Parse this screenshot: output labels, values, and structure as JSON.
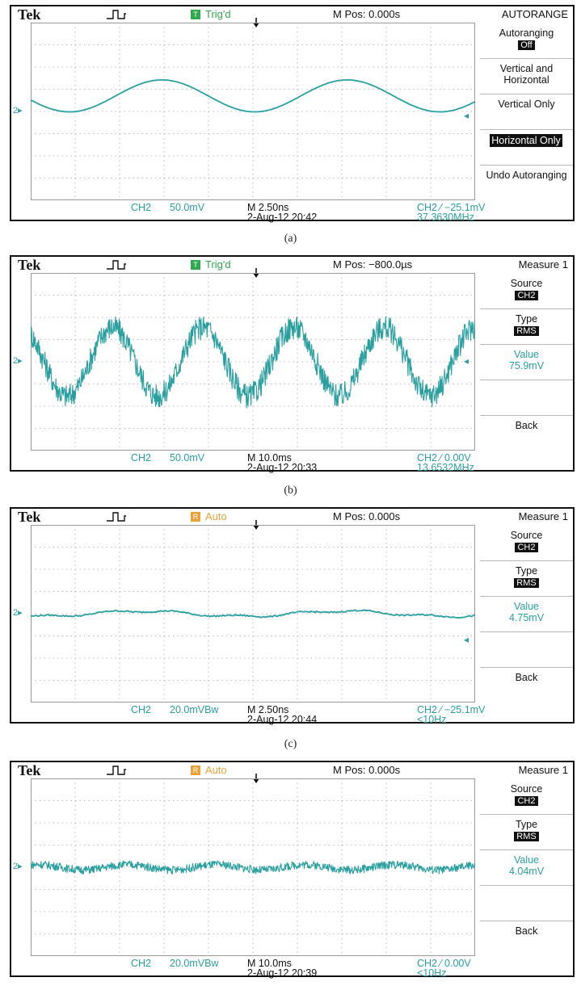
{
  "screens": [
    {
      "caption": "(a)",
      "brand": "Tek",
      "trigger_badge": "T",
      "trigger_status": "Trig'd",
      "trigger_color": "#2fa84f",
      "mpos": "M Pos: 0.000s",
      "menu_title": "AUTORANGE",
      "ch_label": "CH2",
      "vscale": "50.0mV",
      "timebase": "M 2.50ns",
      "datetime": "2-Aug-12 20:42",
      "trig_info": "CH2 ⁄ −25.1mV",
      "freq": "37.3630MHz",
      "menu": [
        {
          "label": "Autoranging",
          "chip": "Off"
        },
        {
          "label": "Vertical and Horizontal"
        },
        {
          "label": "Vertical Only"
        },
        {
          "label": "Horizontal Only",
          "highlight": true
        },
        {
          "label": "Undo Autoranging"
        }
      ],
      "waveform": {
        "type": "sine",
        "cycles": 2.4,
        "amplitude_div": 0.72,
        "offset_div": 0.7,
        "noise_div": 0,
        "phase": 3.4
      },
      "level_marker_div": -0.2
    },
    {
      "caption": "(b)",
      "brand": "Tek",
      "trigger_badge": "T",
      "trigger_status": "Trig'd",
      "trigger_color": "#2fa84f",
      "mpos": "M Pos: −800.0µs",
      "menu_title": "Measure 1",
      "ch_label": "CH2",
      "vscale": "50.0mV",
      "timebase": "M 10.0ms",
      "datetime": "2-Aug-12 20:33",
      "trig_info": "CH2 ⁄ 0.00V",
      "freq": "13.6532MHz",
      "menu": [
        {
          "label": "Source",
          "chip": "CH2"
        },
        {
          "label": "Type",
          "chip": "RMS"
        },
        {
          "label": "Value",
          "value": "75.9mV"
        },
        {
          "label": ""
        },
        {
          "label": "Back"
        }
      ],
      "waveform": {
        "type": "sine",
        "cycles": 4.9,
        "amplitude_div": 1.55,
        "offset_div": 0,
        "noise_div": 0.55,
        "phase": 2.2
      },
      "level_marker_div": 0
    },
    {
      "caption": "(c)",
      "brand": "Tek",
      "trigger_badge": "R",
      "trigger_status": "Auto",
      "trigger_color": "#e8a23a",
      "mpos": "M Pos: 0.000s",
      "menu_title": "Measure 1",
      "ch_label": "CH2",
      "vscale": "20.0mVBw",
      "timebase": "M 2.50ns",
      "datetime": "2-Aug-12 20:44",
      "trig_info": "CH2 ⁄ −25.1mV",
      "freq": "<10Hz",
      "menu": [
        {
          "label": "Source",
          "chip": "CH2"
        },
        {
          "label": "Type",
          "chip": "RMS"
        },
        {
          "label": "Value",
          "value": "4.75mV"
        },
        {
          "label": ""
        },
        {
          "label": "Back"
        }
      ],
      "waveform": {
        "type": "flat",
        "cycles": 2.2,
        "amplitude_div": 0.12,
        "offset_div": 0,
        "noise_div": 0.03,
        "phase": 4.4
      },
      "level_marker_div": -1.2
    },
    {
      "caption": "",
      "brand": "Tek",
      "trigger_badge": "R",
      "trigger_status": "Auto",
      "trigger_color": "#e8a23a",
      "mpos": "M Pos: 0.000s",
      "menu_title": "Measure 1",
      "ch_label": "CH2",
      "vscale": "20.0mVBw",
      "timebase": "M 10.0ms",
      "datetime": "2-Aug-12 20:39",
      "trig_info": "CH2 ⁄ 0.00V",
      "freq": "<10Hz",
      "menu": [
        {
          "label": "Source",
          "chip": "CH2"
        },
        {
          "label": "Type",
          "chip": "RMS"
        },
        {
          "label": "Value",
          "value": "4.04mV"
        },
        {
          "label": ""
        },
        {
          "label": "Back"
        }
      ],
      "waveform": {
        "type": "noisy",
        "cycles": 5,
        "amplitude_div": 0.12,
        "offset_div": 0,
        "noise_div": 0.18,
        "phase": 1.0
      },
      "level_marker_div": null
    }
  ],
  "trace_color": "#2a9fa0"
}
